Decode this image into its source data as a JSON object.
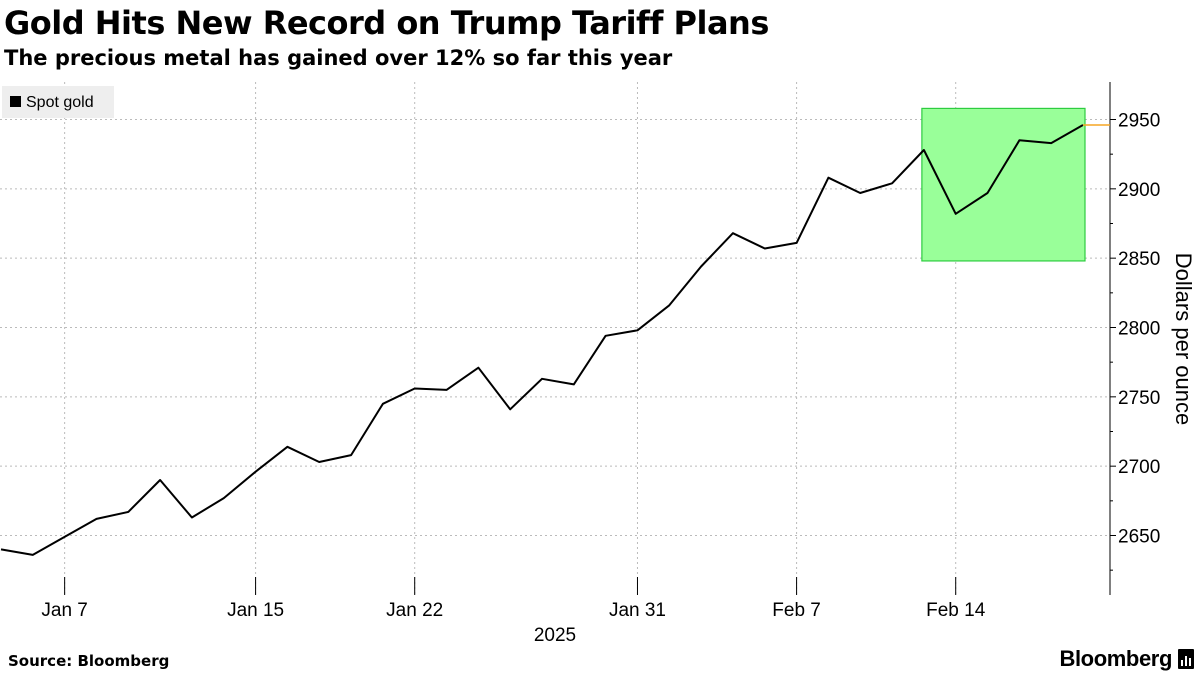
{
  "header": {
    "title": "Gold Hits New Record on Trump Tariff Plans",
    "subtitle": "The precious metal has gained over 12% so far this year"
  },
  "footer": {
    "source": "Source: Bloomberg",
    "brand": "Bloomberg"
  },
  "colors": {
    "line": "#000000",
    "highlight_fill": "#99ff99",
    "highlight_stroke": "#2ecc40",
    "last_value_marker": "#f5a623",
    "grid": "#bbbbbb"
  },
  "chart_data": {
    "type": "line",
    "title": "Gold Hits New Record on Trump Tariff Plans",
    "subtitle": "The precious metal has gained over 12% so far this year",
    "xlabel": "2025",
    "ylabel": "Dollars per ounce",
    "ylim": [
      2620,
      2960
    ],
    "yticks": [
      2650,
      2700,
      2750,
      2800,
      2850,
      2900,
      2950
    ],
    "xticks": [
      {
        "label": "Jan 7",
        "index": 2
      },
      {
        "label": "Jan 15",
        "index": 8
      },
      {
        "label": "Jan 22",
        "index": 13
      },
      {
        "label": "Jan 31",
        "index": 20
      },
      {
        "label": "Feb 7",
        "index": 25
      },
      {
        "label": "Feb 14",
        "index": 30
      }
    ],
    "legend": {
      "position": "top-left",
      "entries": [
        "Spot gold"
      ]
    },
    "highlight": {
      "from_index": 29,
      "to_index": 34,
      "y_from": 2848,
      "y_to": 2958
    },
    "series": [
      {
        "name": "Spot gold",
        "values": [
          2640,
          2636,
          2649,
          2662,
          2667,
          2690,
          2663,
          2677,
          2696,
          2714,
          2703,
          2708,
          2745,
          2756,
          2755,
          2771,
          2741,
          2763,
          2759,
          2794,
          2798,
          2816,
          2844,
          2868,
          2857,
          2861,
          2908,
          2897,
          2904,
          2928,
          2882,
          2897,
          2935,
          2933,
          2946
        ]
      }
    ]
  }
}
